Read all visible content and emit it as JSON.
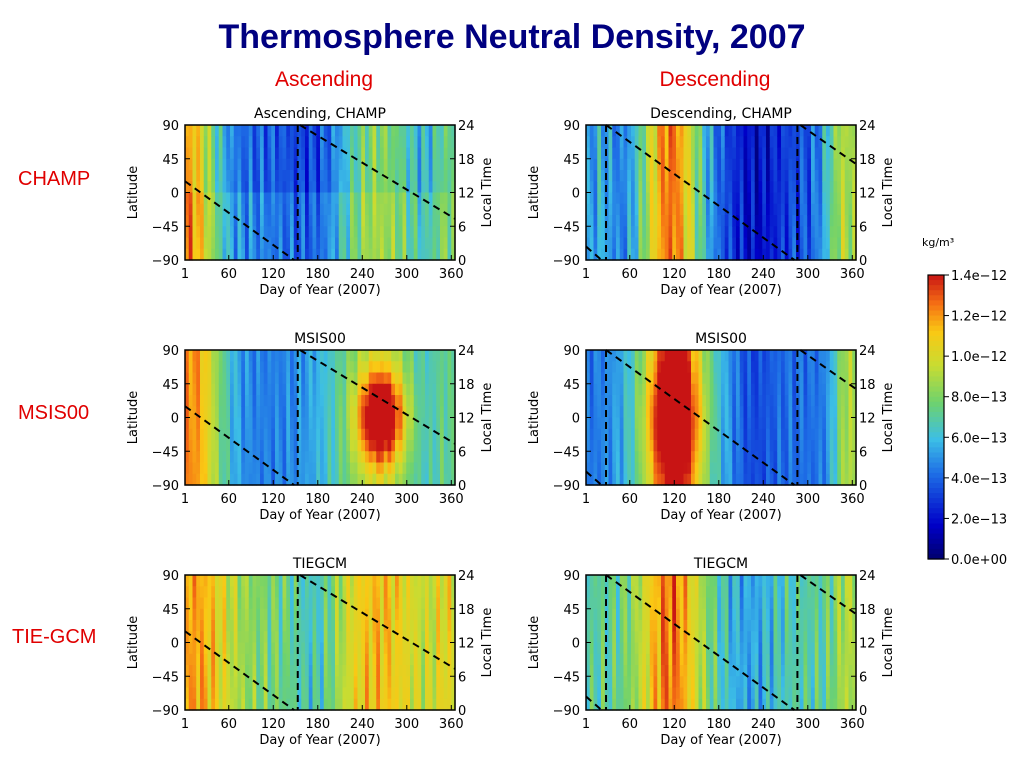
{
  "title": "Thermosphere Neutral Density, 2007",
  "column_headers": [
    "Ascending",
    "Descending"
  ],
  "row_labels": [
    "CHAMP",
    "MSIS00",
    "TIE-GCM"
  ],
  "colorbar": {
    "unit": "kg/m³",
    "ticks": [
      "1.4e-12",
      "1.2e-12",
      "1.0e-12",
      "8.0e-13",
      "6.0e-13",
      "4.0e-13",
      "2.0e-13",
      "0.0e+00"
    ]
  },
  "colors": {
    "title": "#000080",
    "labels": "#e00000"
  },
  "chart_data": [
    {
      "type": "heatmap",
      "title": "Ascending, CHAMP",
      "xlabel": "Day of Year (2007)",
      "ylabel": "Latitude",
      "y2label": "Local Time",
      "xticks": [
        "1",
        "60",
        "120",
        "180",
        "240",
        "300",
        "360"
      ],
      "yticks": [
        "90",
        "45",
        "0",
        "-45",
        "-90"
      ],
      "y2ticks": [
        "24",
        "18",
        "12",
        "6",
        "0"
      ],
      "xlim": [
        1,
        365
      ],
      "ylim": [
        -90,
        90
      ],
      "y2lim": [
        0,
        24
      ],
      "colorscale_range": [
        0,
        1.4e-12
      ]
    },
    {
      "type": "heatmap",
      "title": "Descending, CHAMP",
      "xlabel": "Day of Year (2007)",
      "ylabel": "Latitude",
      "y2label": "Local Time",
      "xticks": [
        "1",
        "60",
        "120",
        "180",
        "240",
        "300",
        "360"
      ],
      "yticks": [
        "90",
        "45",
        "0",
        "-45",
        "-90"
      ],
      "y2ticks": [
        "24",
        "18",
        "12",
        "6",
        "0"
      ],
      "xlim": [
        1,
        365
      ],
      "ylim": [
        -90,
        90
      ],
      "y2lim": [
        0,
        24
      ],
      "colorscale_range": [
        0,
        1.4e-12
      ]
    },
    {
      "type": "heatmap",
      "title": "MSIS00",
      "xlabel": "Day of Year (2007)",
      "ylabel": "Latitude",
      "y2label": "Local Time",
      "xticks": [
        "1",
        "60",
        "120",
        "180",
        "240",
        "300",
        "360"
      ],
      "yticks": [
        "90",
        "45",
        "0",
        "-45",
        "-90"
      ],
      "y2ticks": [
        "24",
        "18",
        "12",
        "6",
        "0"
      ],
      "xlim": [
        1,
        365
      ],
      "ylim": [
        -90,
        90
      ],
      "y2lim": [
        0,
        24
      ],
      "colorscale_range": [
        0,
        1.4e-12
      ]
    },
    {
      "type": "heatmap",
      "title": "MSIS00",
      "xlabel": "Day of Year (2007)",
      "ylabel": "Latitude",
      "y2label": "Local Time",
      "xticks": [
        "1",
        "60",
        "120",
        "180",
        "240",
        "300",
        "360"
      ],
      "yticks": [
        "90",
        "45",
        "0",
        "-45",
        "-90"
      ],
      "y2ticks": [
        "24",
        "18",
        "12",
        "6",
        "0"
      ],
      "xlim": [
        1,
        365
      ],
      "ylim": [
        -90,
        90
      ],
      "y2lim": [
        0,
        24
      ],
      "colorscale_range": [
        0,
        1.4e-12
      ]
    },
    {
      "type": "heatmap",
      "title": "TIEGCM",
      "xlabel": "Day of Year (2007)",
      "ylabel": "Latitude",
      "y2label": "Local Time",
      "xticks": [
        "1",
        "60",
        "120",
        "180",
        "240",
        "300",
        "360"
      ],
      "yticks": [
        "90",
        "45",
        "0",
        "-45",
        "-90"
      ],
      "y2ticks": [
        "24",
        "18",
        "12",
        "6",
        "0"
      ],
      "xlim": [
        1,
        365
      ],
      "ylim": [
        -90,
        90
      ],
      "y2lim": [
        0,
        24
      ],
      "colorscale_range": [
        0,
        1.4e-12
      ]
    },
    {
      "type": "heatmap",
      "title": "TIEGCM",
      "xlabel": "Day of Year (2007)",
      "ylabel": "Latitude",
      "y2label": "Local Time",
      "xticks": [
        "1",
        "60",
        "120",
        "180",
        "240",
        "300",
        "360"
      ],
      "yticks": [
        "90",
        "45",
        "0",
        "-45",
        "-90"
      ],
      "y2ticks": [
        "24",
        "18",
        "12",
        "6",
        "0"
      ],
      "xlim": [
        1,
        365
      ],
      "ylim": [
        -90,
        90
      ],
      "y2lim": [
        0,
        24
      ],
      "colorscale_range": [
        0,
        1.4e-12
      ]
    }
  ]
}
